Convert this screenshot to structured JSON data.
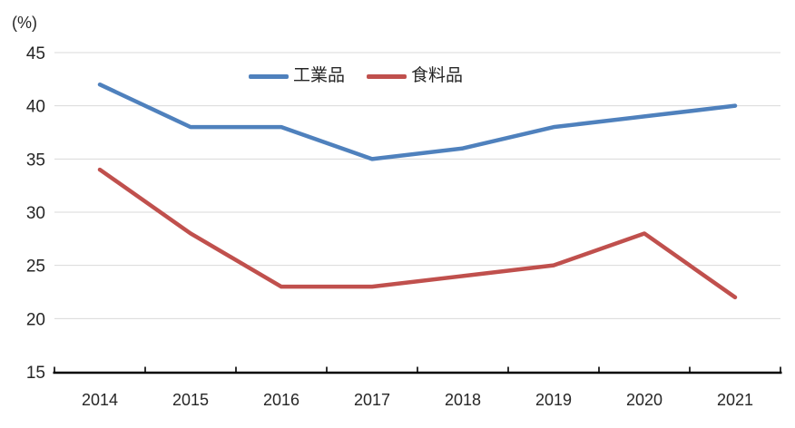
{
  "chart_data": {
    "type": "line",
    "title": "",
    "ylabel": "(%)",
    "xlabel": "",
    "categories": [
      "2014",
      "2015",
      "2016",
      "2017",
      "2018",
      "2019",
      "2020",
      "2021"
    ],
    "series": [
      {
        "name": "工業品",
        "color": "#4F81BD",
        "values": [
          42,
          38,
          38,
          35,
          36,
          38,
          39,
          40
        ]
      },
      {
        "name": "食料品",
        "color": "#C0504D",
        "values": [
          34,
          28,
          23,
          23,
          24,
          25,
          28,
          22
        ]
      }
    ],
    "ylim": [
      15,
      45
    ],
    "ytick_step": 5,
    "yticks": [
      15,
      20,
      25,
      30,
      35,
      40,
      45
    ],
    "grid": true,
    "legend_position": "top-center"
  },
  "colors": {
    "gridline": "#D9D9D9",
    "axis": "#000000",
    "text": "#262626",
    "background": "#FFFFFF"
  }
}
